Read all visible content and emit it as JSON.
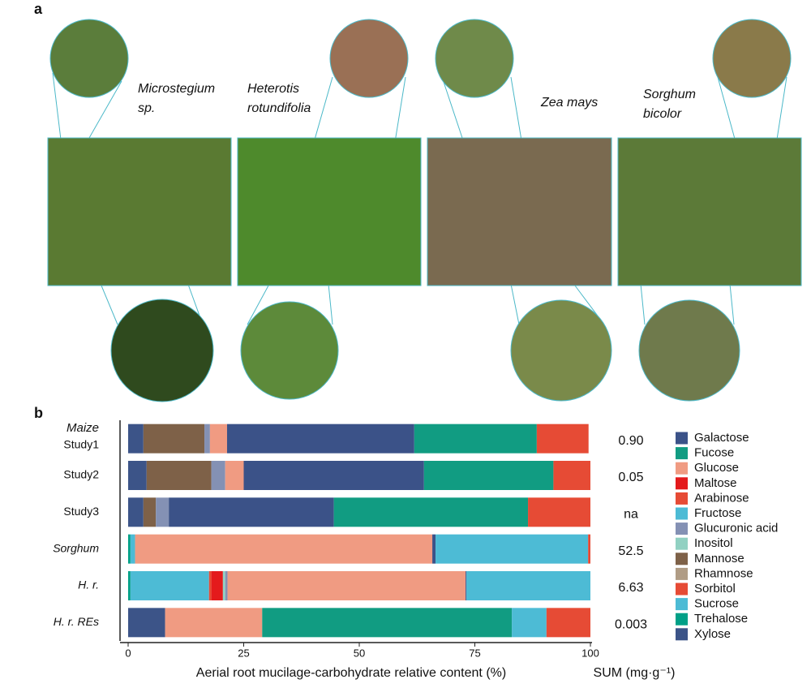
{
  "panel_a": {
    "letter": "a",
    "species": [
      "Microstegium sp.",
      "Heterotis rotundifolia",
      "Zea mays",
      "Sorghum bicolor"
    ]
  },
  "chart_data": {
    "type": "stacked-bar-horizontal",
    "letter": "b",
    "x_label": "Aerial root mucilage-carbohydrate relative content (%)",
    "group_label": "Maize",
    "categories": [
      "Study1",
      "Study2",
      "Study3",
      "Sorghum",
      "H. r.",
      "H. r. REs"
    ],
    "xlim": [
      0,
      100
    ],
    "xticks": [
      0,
      25,
      50,
      75,
      100
    ],
    "stack": "reverse-alphabetical",
    "series": [
      {
        "name": "Galactose",
        "color": "#3b5288",
        "values": [
          40.5,
          39,
          35.7,
          0.7,
          0.2,
          0
        ]
      },
      {
        "name": "Fucose",
        "color": "#119c82",
        "values": [
          26.5,
          28,
          42,
          0,
          0,
          54
        ]
      },
      {
        "name": "Glucose",
        "color": "#f09b82",
        "values": [
          3.7,
          4,
          0,
          64.3,
          51.5,
          21
        ]
      },
      {
        "name": "Maltose",
        "color": "#e41a1c",
        "values": [
          0,
          0,
          0,
          0,
          2.5,
          0
        ]
      },
      {
        "name": "Arabinose",
        "color": "#e64b35",
        "values": [
          11.2,
          8,
          13.5,
          0.5,
          0,
          9.5
        ]
      },
      {
        "name": "Fructose",
        "color": "#4dbbd5",
        "values": [
          0,
          0,
          0,
          33,
          26.8,
          7.5
        ]
      },
      {
        "name": "Glucuronic acid",
        "color": "#8491b4",
        "values": [
          1.2,
          3,
          2.8,
          0,
          0.5,
          0
        ]
      },
      {
        "name": "Inositol",
        "color": "#91d1c2",
        "values": [
          0,
          0,
          0,
          0,
          0.5,
          0
        ]
      },
      {
        "name": "Mannose",
        "color": "#7e6148",
        "values": [
          13.2,
          14,
          2.7,
          0,
          0,
          0
        ]
      },
      {
        "name": "Rhamnose",
        "color": "#b09c85",
        "values": [
          0,
          0,
          0,
          0,
          0,
          0
        ]
      },
      {
        "name": "Sorbitol",
        "color": "#e64b35",
        "values": [
          0,
          0,
          0,
          0,
          0.5,
          0
        ]
      },
      {
        "name": "Sucrose",
        "color": "#4dbbd5",
        "values": [
          0,
          0,
          0,
          1,
          17,
          0
        ]
      },
      {
        "name": "Trehalose",
        "color": "#00a087",
        "values": [
          0,
          0,
          0,
          0.5,
          0.5,
          0
        ]
      },
      {
        "name": "Xylose",
        "color": "#3c5488",
        "values": [
          3.3,
          4,
          3.3,
          0,
          0,
          8
        ]
      }
    ],
    "sum": {
      "label": "SUM (mg·g⁻¹)",
      "values": [
        0.9,
        0.05,
        null,
        52.5,
        6.63,
        0.003
      ],
      "value_labels": [
        "0.90",
        "0.05",
        "na",
        "52.5",
        "6.63",
        "0.003"
      ]
    }
  }
}
